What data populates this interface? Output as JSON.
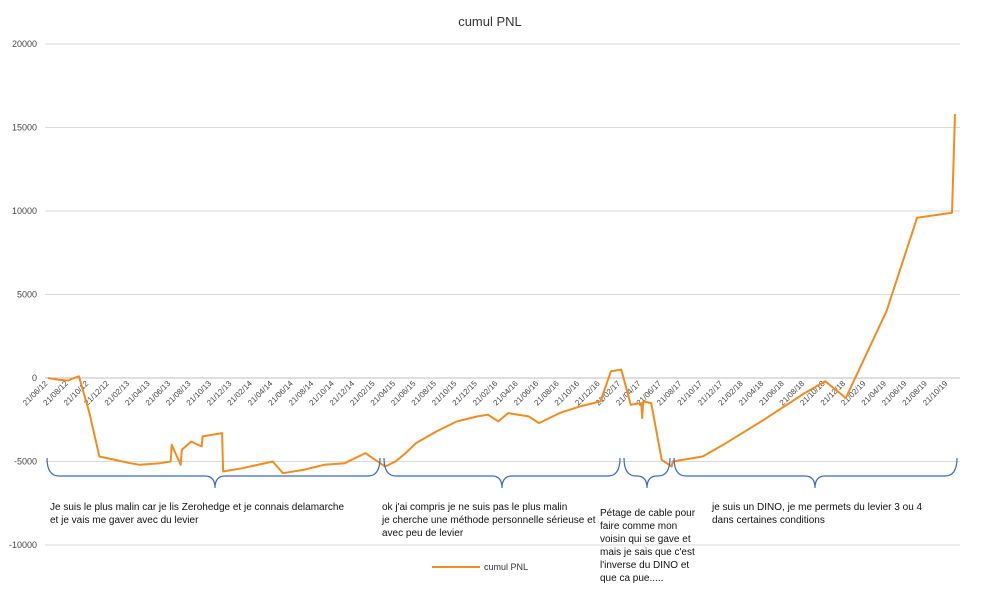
{
  "chart_data": {
    "type": "line",
    "title": "cumul PNL",
    "xlabel": "",
    "ylabel": "",
    "ylim": [
      -10000,
      20000
    ],
    "y_ticks": [
      20000,
      15000,
      10000,
      5000,
      0,
      -5000,
      -10000
    ],
    "y_tick_labels": [
      "20000",
      "15000",
      "10000",
      "5000",
      "0",
      "-5000",
      "-10000"
    ],
    "grid": true,
    "legend_position": "bottom",
    "x_tick_labels": [
      "21/06/12",
      "21/08/12",
      "21/10/12",
      "21/12/12",
      "21/02/13",
      "21/04/13",
      "21/06/13",
      "21/08/13",
      "21/10/13",
      "21/12/13",
      "21/02/14",
      "21/04/14",
      "21/06/14",
      "21/08/14",
      "21/10/14",
      "21/12/14",
      "21/02/15",
      "21/04/15",
      "21/06/15",
      "21/08/15",
      "21/10/15",
      "21/12/15",
      "21/02/16",
      "21/04/16",
      "21/06/16",
      "21/08/16",
      "21/10/16",
      "21/12/16",
      "21/02/17",
      "21/04/17",
      "21/06/17",
      "21/08/17",
      "21/10/17",
      "21/12/17",
      "21/02/18",
      "21/04/18",
      "21/06/18",
      "21/08/18",
      "21/10/18",
      "21/12/18",
      "21/02/19",
      "21/04/19",
      "21/06/19",
      "21/08/19",
      "21/10/19"
    ],
    "series": [
      {
        "name": "cumul PNL",
        "color": "#F28C1E",
        "points": [
          [
            "21/06/12",
            0
          ],
          [
            "21/07/12",
            -100
          ],
          [
            "21/08/12",
            -150
          ],
          [
            "21/08/20/12",
            -50
          ],
          [
            "21/09/12",
            100
          ],
          [
            "21/10/12",
            -2000
          ],
          [
            "21/11/12",
            -4700
          ],
          [
            "21/02/13",
            -5100
          ],
          [
            "21/03/13",
            -5200
          ],
          [
            "21/05/13",
            -5100
          ],
          [
            "21/06/13",
            -5000
          ],
          [
            "21/06/13b",
            -4000
          ],
          [
            "21/07/13",
            -5200
          ],
          [
            "21/07/13b",
            -4300
          ],
          [
            "21/08/13",
            -3800
          ],
          [
            "21/09/13",
            -4100
          ],
          [
            "21/09/13b",
            -3500
          ],
          [
            "21/11/13",
            -3300
          ],
          [
            "21/11/13b",
            -5600
          ],
          [
            "21/01/14",
            -5400
          ],
          [
            "21/04/14",
            -5000
          ],
          [
            "21/05/14",
            -5700
          ],
          [
            "21/07/14",
            -5500
          ],
          [
            "21/09/14",
            -5200
          ],
          [
            "21/11/14",
            -5100
          ],
          [
            "21/01/15",
            -4500
          ],
          [
            "21/03/15",
            -5300
          ],
          [
            "21/04/15",
            -5000
          ],
          [
            "21/05/15",
            -4500
          ],
          [
            "21/06/15",
            -3900
          ],
          [
            "21/08/15",
            -3200
          ],
          [
            "21/10/15",
            -2600
          ],
          [
            "21/12/15",
            -2300
          ],
          [
            "21/01/16",
            -2200
          ],
          [
            "21/02/16",
            -2600
          ],
          [
            "21/03/16",
            -2100
          ],
          [
            "21/05/16",
            -2300
          ],
          [
            "21/06/16",
            -2700
          ],
          [
            "21/08/16",
            -2100
          ],
          [
            "21/10/16",
            -1700
          ],
          [
            "21/12/16",
            -1400
          ],
          [
            "21/01/17",
            400
          ],
          [
            "21/02/17",
            500
          ],
          [
            "21/03/17",
            -1600
          ],
          [
            "21/04/17",
            -1500
          ],
          [
            "21/04/17b",
            -2400
          ],
          [
            "21/04/17c",
            -1400
          ],
          [
            "21/05/17",
            -1500
          ],
          [
            "21/06/17",
            -4900
          ],
          [
            "21/07/17",
            -5300
          ],
          [
            "21/07/17b",
            -5000
          ],
          [
            "21/10/17",
            -4700
          ],
          [
            "21/12/17",
            -4000
          ],
          [
            "21/04/18",
            -2500
          ],
          [
            "21/08/18",
            -900
          ],
          [
            "21/10/18",
            -200
          ],
          [
            "21/12/18",
            -1200
          ],
          [
            "21/04/19",
            4000
          ],
          [
            "21/07/19",
            9600
          ],
          [
            "21/11/19",
            9900
          ],
          [
            "21/11/19b",
            15800
          ]
        ]
      }
    ],
    "annotations": [
      {
        "text": "Je suis le plus malin car je lis Zerohedge et je connais delamarche\net je vais me gaver avec du levier"
      },
      {
        "text": "ok j'ai compris je ne suis pas le plus malin\nje cherche une méthode personnelle sérieuse et\navec peu de levier"
      },
      {
        "text": "Pétage de cable pour\nfaire comme mon\nvoisin qui se gave et\nmais je sais que c'est\nl'inverse du DINO et\nque ca pue....."
      },
      {
        "text": "je suis un DINO, je me permets du levier 3 ou 4\ndans certaines conditions"
      }
    ]
  }
}
